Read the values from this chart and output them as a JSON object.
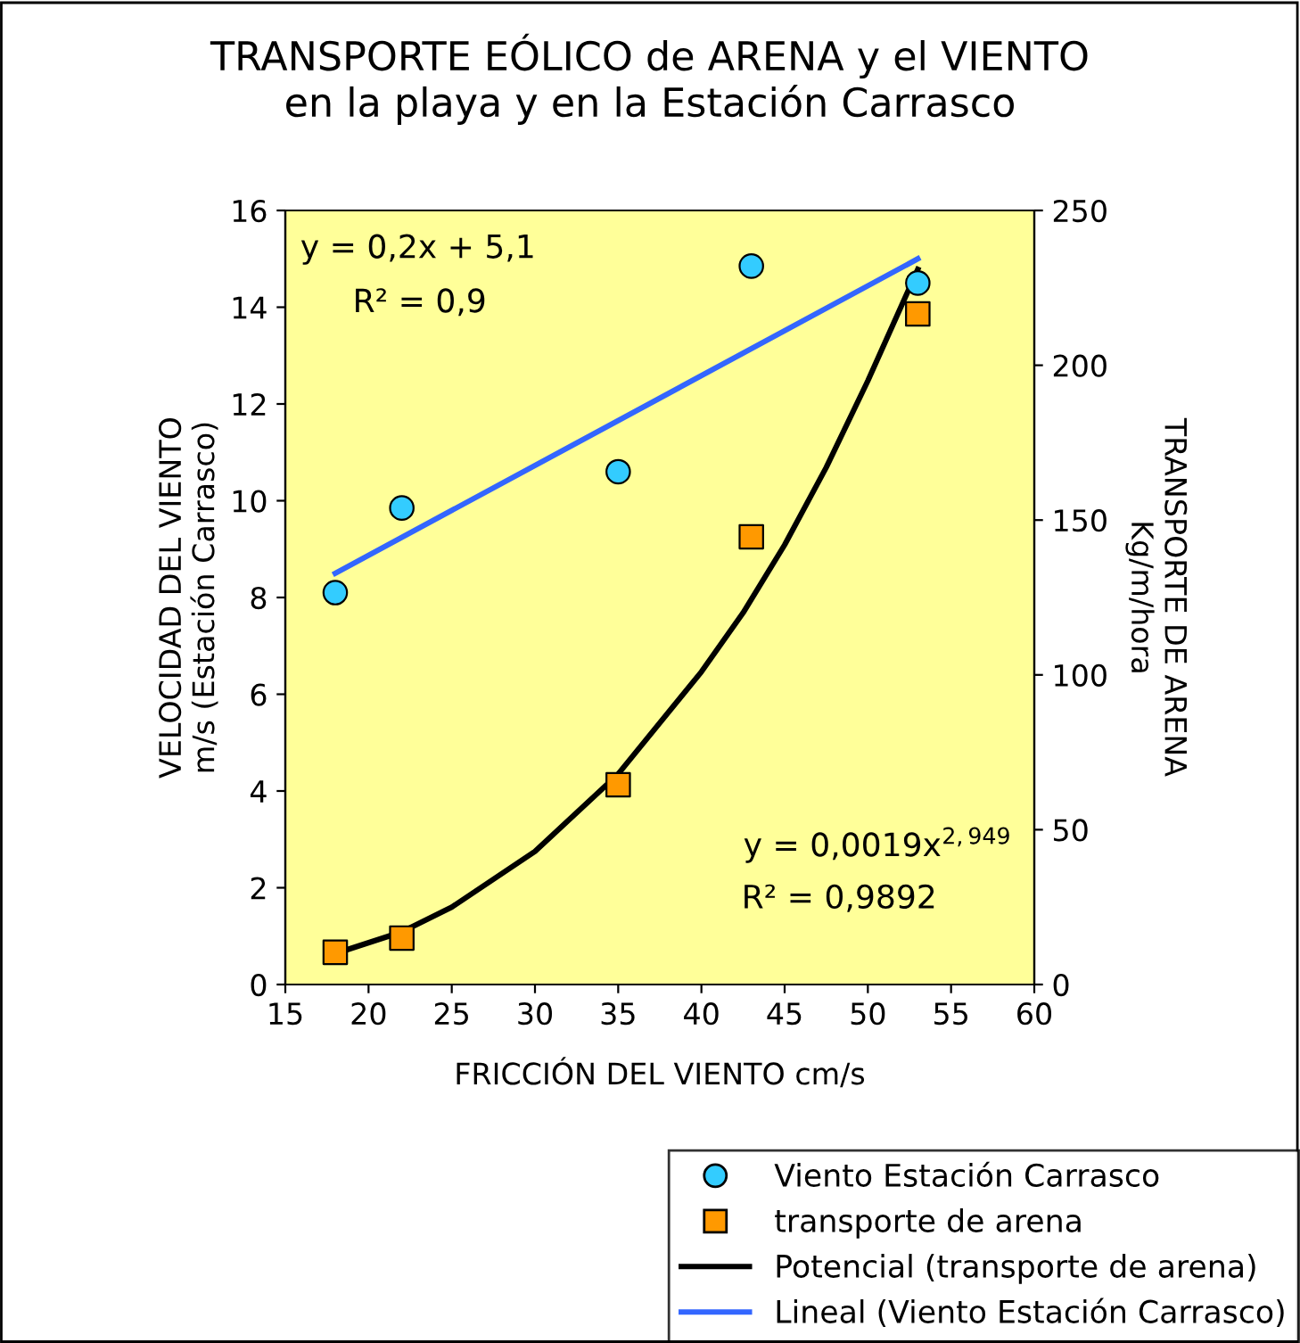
{
  "chart_data": {
    "type": "scatter",
    "title": "TRANSPORTE EÓLICO de ARENA y el VIENTO\nen la playa y en la Estación Carrasco",
    "xlabel": "FRICCIÓN DEL VIENTO cm/s",
    "ylabel": "VELOCIDAD DEL VIENTO\nm/s (Estación Carrasco)",
    "y2label": "TRANSPORTE DE ARENA\nKg/m/hora",
    "xlim": [
      15,
      60
    ],
    "xticks": [
      15,
      20,
      25,
      30,
      35,
      40,
      45,
      50,
      55,
      60
    ],
    "ylim": [
      0,
      16
    ],
    "yticks": [
      0,
      2,
      4,
      6,
      8,
      10,
      12,
      14,
      16
    ],
    "y2lim": [
      0,
      250
    ],
    "y2ticks": [
      0,
      50,
      100,
      150,
      200,
      250
    ],
    "series": [
      {
        "name": "Viento Estación Carrasco",
        "marker": "circle",
        "color": "#33ccff",
        "x": [
          18,
          22,
          35,
          43,
          53
        ],
        "values": [
          8.1,
          9.85,
          10.6,
          14.85,
          14.5
        ]
      },
      {
        "name": "transporte de arena",
        "marker": "square",
        "color": "#ff9900",
        "axis": "y2",
        "x": [
          18,
          22,
          35,
          43,
          53
        ],
        "values": [
          10.4,
          15,
          64.5,
          144.6,
          216.6
        ]
      },
      {
        "name": "Potencial (transporte de arena)",
        "type": "line",
        "color": "#000000",
        "axis": "y2",
        "x": [
          18,
          22,
          25,
          30,
          35,
          40,
          42.5,
          45,
          47.5,
          50,
          53
        ],
        "values": [
          10,
          17,
          25,
          43,
          68,
          101,
          120,
          142,
          167,
          195,
          231
        ]
      },
      {
        "name": "Lineal (Viento Estación Carrasco)",
        "type": "line",
        "color": "#3366ff",
        "x": [
          18,
          53
        ],
        "values": [
          8.5,
          15.0
        ]
      }
    ],
    "annotations": [
      "y = 0,2x + 5,1",
      "R² = 0,9",
      "y = 0,0019x$^{2,949}$",
      "R² = 0,9892"
    ],
    "legend": "bottom right",
    "grid": false
  }
}
